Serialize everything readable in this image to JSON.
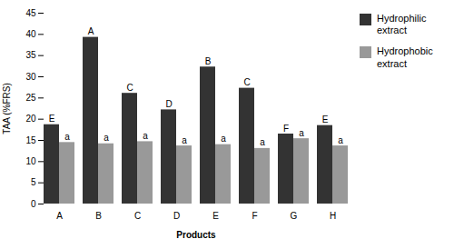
{
  "chart_data": {
    "type": "bar",
    "categories": [
      "A",
      "B",
      "C",
      "D",
      "E",
      "F",
      "G",
      "H"
    ],
    "series": [
      {
        "name": "Hydrophilic\nextract",
        "color": "#333333",
        "values": [
          18.7,
          39.3,
          26.1,
          22.2,
          32.3,
          27.3,
          16.5,
          18.5
        ],
        "letters": [
          "E",
          "A",
          "C",
          "D",
          "B",
          "C",
          "F",
          "E"
        ]
      },
      {
        "name": "Hydrophobic\nextract",
        "color": "#999999",
        "values": [
          14.5,
          14.2,
          14.7,
          13.7,
          14.0,
          13.1,
          15.4,
          13.7
        ],
        "letters": [
          "a",
          "a",
          "a",
          "a",
          "a",
          "a",
          "a",
          "a"
        ]
      }
    ],
    "xlabel": "Products",
    "ylabel": "TAA (%FRS)",
    "ylim": [
      0,
      45
    ],
    "yticks": [
      0,
      5,
      10,
      15,
      20,
      25,
      30,
      35,
      40,
      45
    ],
    "legend": "right"
  }
}
